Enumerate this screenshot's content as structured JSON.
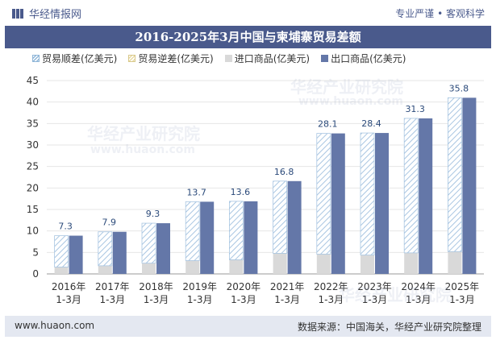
{
  "header": {
    "brand_name": "华经情报网",
    "tagline": "专业严谨 • 客观科学"
  },
  "chart_data": {
    "type": "bar",
    "title": "2016-2025年3月中国与柬埔寨贸易差额",
    "categories": [
      "2016年\n1-3月",
      "2017年\n1-3月",
      "2018年\n1-3月",
      "2019年\n1-3月",
      "2020年\n1-3月",
      "2021年\n1-3月",
      "2022年\n1-3月",
      "2023年\n1-3月",
      "2024年\n1-3月",
      "2025年\n1-3月"
    ],
    "series": [
      {
        "name": "贸易顺差(亿美元)",
        "values": [
          7.3,
          7.9,
          9.3,
          13.7,
          13.6,
          16.8,
          28.1,
          28.4,
          31.3,
          35.8
        ],
        "color": "#8fb6d8"
      },
      {
        "name": "贸易逆差(亿美元)",
        "values": [
          0,
          0,
          0,
          0,
          0,
          0,
          0,
          0,
          0,
          0
        ],
        "color": "#e8d9a0"
      },
      {
        "name": "进口商品(亿美元)",
        "values": [
          1.6,
          1.9,
          2.5,
          3.1,
          3.3,
          4.8,
          4.6,
          4.4,
          4.9,
          5.2
        ],
        "color": "#d9d9d9"
      },
      {
        "name": "出口商品(亿美元)",
        "values": [
          8.9,
          9.8,
          11.8,
          16.8,
          16.9,
          21.6,
          32.7,
          32.8,
          36.2,
          41.0
        ],
        "color": "#6477a8"
      }
    ],
    "y_ticks": [
      0,
      5,
      10,
      15,
      20,
      25,
      30,
      35,
      40,
      45
    ],
    "ylim": [
      0,
      45
    ],
    "grid": true,
    "legend_position": "top"
  },
  "footer": {
    "website": "www.huaon.com",
    "source": "数据来源：中国海关，华经产业研究院整理"
  },
  "watermark": {
    "text1": "华经产业研究院",
    "text2": "www.huaon.com"
  }
}
